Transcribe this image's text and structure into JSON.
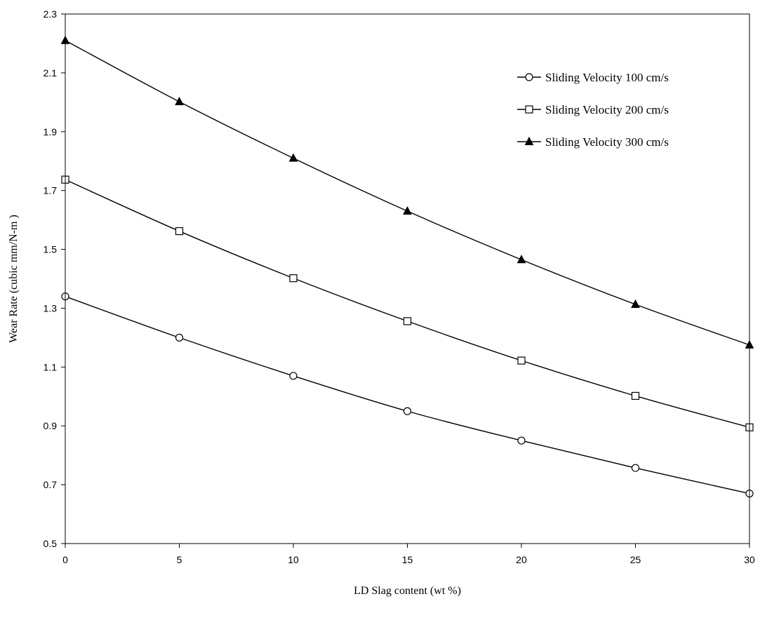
{
  "chart_data": {
    "type": "line",
    "title": "",
    "xlabel": "LD Slag content (wt %)",
    "ylabel": "Wear Rate (cubic mm/N-m  )",
    "xlim": [
      0,
      30
    ],
    "ylim": [
      0.5,
      2.3
    ],
    "x_ticks": [
      "0",
      "5",
      "10",
      "15",
      "20",
      "25",
      "30"
    ],
    "y_ticks": [
      "0.5",
      "0.7",
      "0.9",
      "1.1",
      "1.3",
      "1.5",
      "1.7",
      "1.9",
      "2.1",
      "2.3"
    ],
    "grid": false,
    "legend_position": "top-right",
    "x": [
      0,
      5,
      10,
      15,
      20,
      25,
      30
    ],
    "series": [
      {
        "name": "Sliding Velocity 100 cm/s",
        "marker": "circle-open",
        "values": [
          1.34,
          1.2,
          1.07,
          0.95,
          0.85,
          0.757,
          0.67
        ]
      },
      {
        "name": "Sliding Velocity 200 cm/s",
        "marker": "square-open",
        "values": [
          1.737,
          1.562,
          1.402,
          1.256,
          1.122,
          1.002,
          0.895
        ]
      },
      {
        "name": "Sliding Velocity 300 cm/s",
        "marker": "triangle-filled",
        "values": [
          2.21,
          2.002,
          1.81,
          1.63,
          1.465,
          1.313,
          1.175
        ]
      }
    ]
  }
}
